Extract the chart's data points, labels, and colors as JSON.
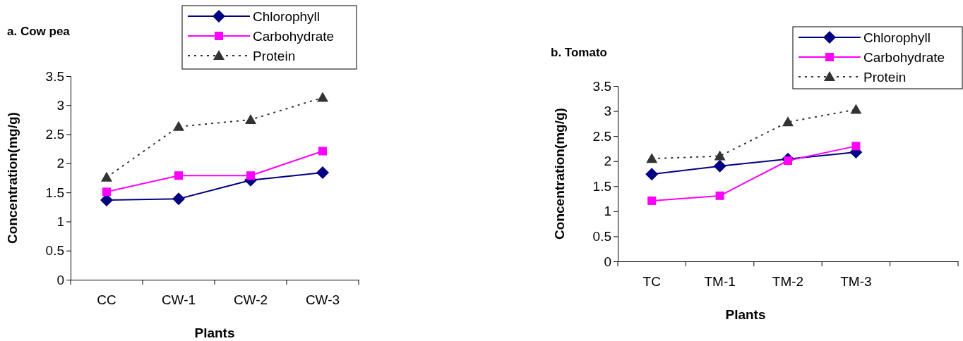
{
  "chart_data": [
    {
      "type": "line",
      "title": "a. Cow pea",
      "xlabel": "Plants",
      "ylabel": "Concentration(mg/g)",
      "categories": [
        "CC",
        "CW-1",
        "CW-2",
        "CW-3"
      ],
      "ylim": [
        0,
        3.5
      ],
      "yticks": [
        0,
        0.5,
        1,
        1.5,
        2,
        2.5,
        3,
        3.5
      ],
      "legend": "top right",
      "series": [
        {
          "name": "Chlorophyll",
          "color": "#000080",
          "marker": "diamond",
          "line_style": "solid",
          "values": [
            1.37,
            1.39,
            1.71,
            1.84
          ]
        },
        {
          "name": "Carbohydrate",
          "color": "#ff00ff",
          "marker": "square",
          "line_style": "solid",
          "values": [
            1.51,
            1.79,
            1.79,
            2.21
          ]
        },
        {
          "name": "Protein",
          "color": "#333333",
          "marker": "triangle",
          "line_style": "dotted",
          "values": [
            1.76,
            2.63,
            2.75,
            3.13
          ]
        }
      ]
    },
    {
      "type": "line",
      "title": "b. Tomato",
      "xlabel": "Plants",
      "ylabel": "Concentration(mg/g)",
      "categories": [
        "TC",
        "TM-1",
        "TM-2",
        "TM-3",
        null
      ],
      "ylim": [
        0,
        3.5
      ],
      "yticks": [
        0,
        0.5,
        1,
        1.5,
        2,
        2.5,
        3,
        3.5
      ],
      "legend": "top right",
      "series": [
        {
          "name": "Chlorophyll",
          "color": "#000080",
          "marker": "diamond",
          "line_style": "solid",
          "values": [
            1.74,
            1.9,
            2.04,
            2.18,
            null
          ]
        },
        {
          "name": "Carbohydrate",
          "color": "#ff00ff",
          "marker": "square",
          "line_style": "solid",
          "values": [
            1.21,
            1.31,
            2.01,
            2.3,
            null
          ]
        },
        {
          "name": "Protein",
          "color": "#333333",
          "marker": "triangle",
          "line_style": "dotted",
          "values": [
            2.05,
            2.1,
            2.78,
            3.03,
            null
          ]
        }
      ]
    }
  ]
}
